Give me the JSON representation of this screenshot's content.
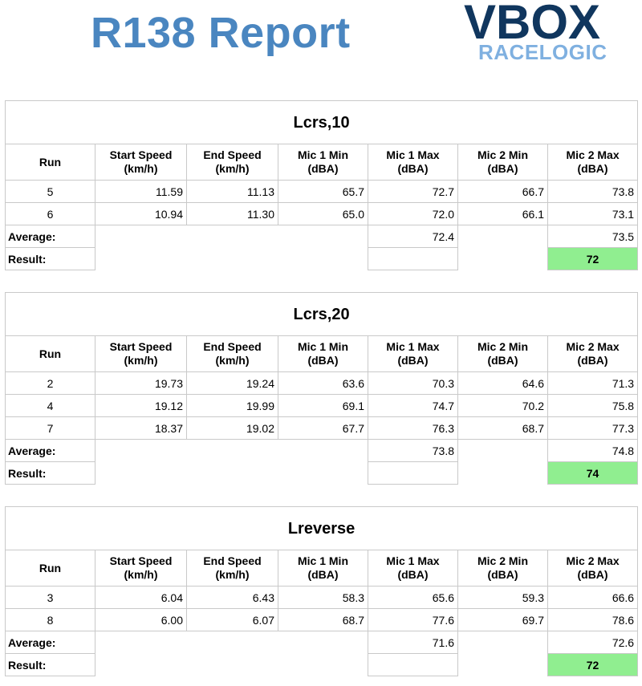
{
  "header": {
    "title": "R138 Report",
    "logo_main": "VBOX",
    "logo_sub": "RACELOGIC"
  },
  "columns": [
    "Run",
    "Start Speed\n(km/h)",
    "End Speed\n(km/h)",
    "Mic 1 Min\n(dBA)",
    "Mic 1 Max\n(dBA)",
    "Mic 2 Min\n(dBA)",
    "Mic 2 Max\n(dBA)"
  ],
  "labels": {
    "average": "Average:",
    "result": "Result:"
  },
  "colors": {
    "result_fill": "#90ee90",
    "title_blue": "#4a86c0",
    "logo_dark": "#10365e",
    "logo_light": "#7fb0e0"
  },
  "sections": [
    {
      "title": "Lcrs,10",
      "rows": [
        [
          "5",
          "11.59",
          "11.13",
          "65.7",
          "72.7",
          "66.7",
          "73.8"
        ],
        [
          "6",
          "10.94",
          "11.30",
          "65.0",
          "72.0",
          "66.1",
          "73.1"
        ]
      ],
      "average_mic1_max": "72.4",
      "average_mic2_max": "73.5",
      "result": "72"
    },
    {
      "title": "Lcrs,20",
      "rows": [
        [
          "2",
          "19.73",
          "19.24",
          "63.6",
          "70.3",
          "64.6",
          "71.3"
        ],
        [
          "4",
          "19.12",
          "19.99",
          "69.1",
          "74.7",
          "70.2",
          "75.8"
        ],
        [
          "7",
          "18.37",
          "19.02",
          "67.7",
          "76.3",
          "68.7",
          "77.3"
        ]
      ],
      "average_mic1_max": "73.8",
      "average_mic2_max": "74.8",
      "result": "74"
    },
    {
      "title": "Lreverse",
      "rows": [
        [
          "3",
          "6.04",
          "6.43",
          "58.3",
          "65.6",
          "59.3",
          "66.6"
        ],
        [
          "8",
          "6.00",
          "6.07",
          "68.7",
          "77.6",
          "69.7",
          "78.6"
        ]
      ],
      "average_mic1_max": "71.6",
      "average_mic2_max": "72.6",
      "result": "72"
    }
  ]
}
